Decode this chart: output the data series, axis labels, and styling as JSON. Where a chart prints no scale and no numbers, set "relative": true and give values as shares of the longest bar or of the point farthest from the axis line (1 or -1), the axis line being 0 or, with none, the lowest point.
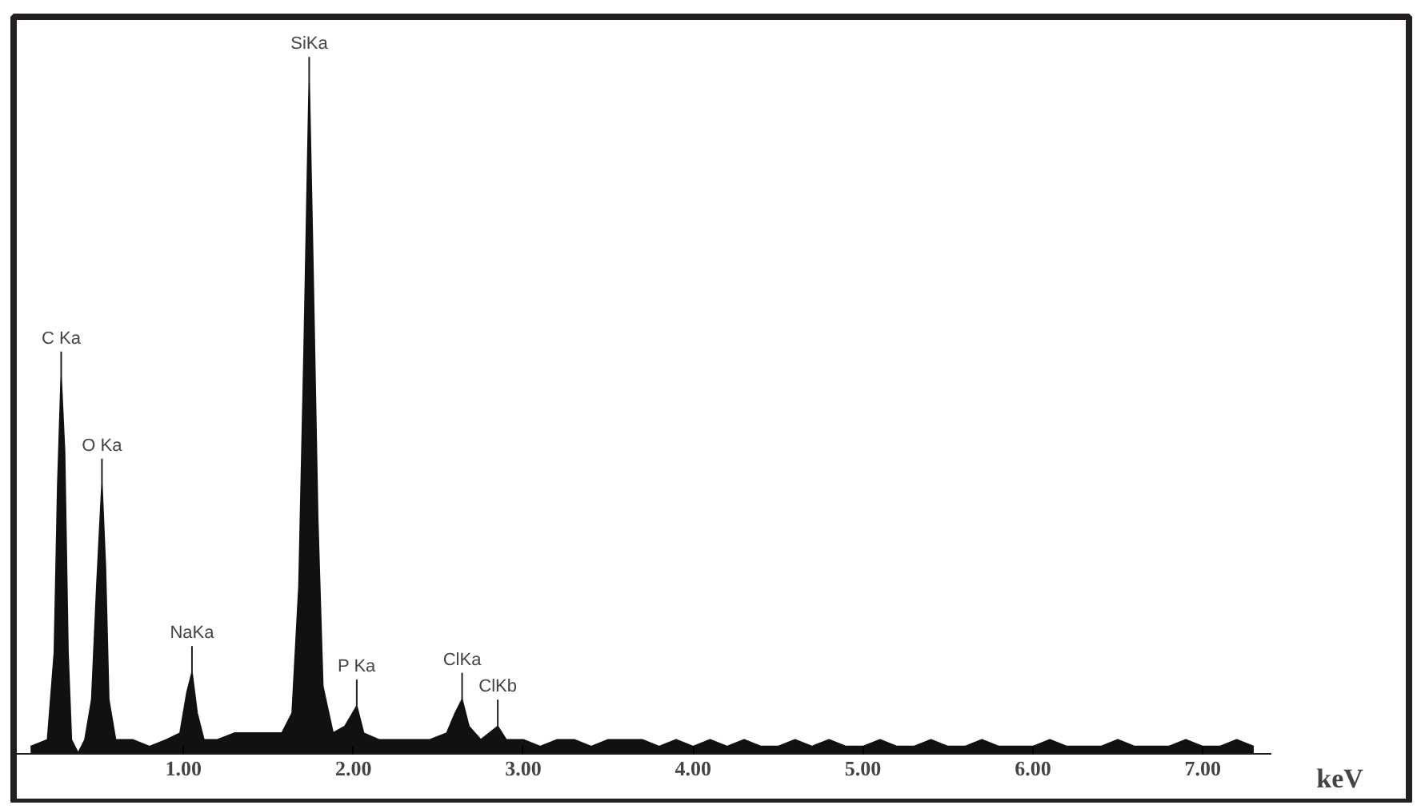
{
  "chart_data": {
    "type": "area",
    "relative": true,
    "xlabel": "keV",
    "xlim": [
      0,
      7.4
    ],
    "xticks": [
      {
        "value": 1,
        "label": "1.00"
      },
      {
        "value": 2,
        "label": "2.00"
      },
      {
        "value": 3,
        "label": "3.00"
      },
      {
        "value": 4,
        "label": "4.00"
      },
      {
        "value": 5,
        "label": "5.00"
      },
      {
        "value": 6,
        "label": "6.00"
      },
      {
        "value": 7,
        "label": "7.00"
      }
    ],
    "grid": false,
    "series": [
      {
        "color": "#111111",
        "x": [
          0.1,
          0.2,
          0.24,
          0.26,
          0.28,
          0.3,
          0.32,
          0.34,
          0.38,
          0.42,
          0.46,
          0.49,
          0.52,
          0.54,
          0.56,
          0.6,
          0.7,
          0.8,
          0.9,
          0.98,
          1.02,
          1.05,
          1.08,
          1.12,
          1.2,
          1.3,
          1.4,
          1.5,
          1.58,
          1.64,
          1.68,
          1.71,
          1.74,
          1.76,
          1.79,
          1.82,
          1.88,
          1.95,
          2.02,
          2.06,
          2.15,
          2.25,
          2.35,
          2.45,
          2.55,
          2.6,
          2.64,
          2.68,
          2.75,
          2.85,
          2.9,
          3.0,
          3.1,
          3.2,
          3.3,
          3.4,
          3.5,
          3.6,
          3.7,
          3.8,
          3.9,
          4.0,
          4.1,
          4.2,
          4.3,
          4.4,
          4.5,
          4.6,
          4.7,
          4.8,
          4.9,
          5.0,
          5.1,
          5.2,
          5.3,
          5.4,
          5.5,
          5.6,
          5.7,
          5.8,
          5.9,
          6.0,
          6.1,
          6.2,
          6.3,
          6.4,
          6.5,
          6.6,
          6.7,
          6.8,
          6.9,
          7.0,
          7.1,
          7.2,
          7.3
        ],
        "values": [
          0.01,
          0.02,
          0.15,
          0.4,
          0.56,
          0.45,
          0.15,
          0.02,
          0,
          0.02,
          0.08,
          0.25,
          0.4,
          0.28,
          0.08,
          0.02,
          0.02,
          0.01,
          0.02,
          0.03,
          0.09,
          0.12,
          0.06,
          0.02,
          0.02,
          0.03,
          0.03,
          0.03,
          0.03,
          0.06,
          0.25,
          0.6,
          1,
          0.75,
          0.35,
          0.1,
          0.03,
          0.04,
          0.07,
          0.03,
          0.02,
          0.02,
          0.02,
          0.02,
          0.03,
          0.06,
          0.08,
          0.04,
          0.02,
          0.04,
          0.02,
          0.02,
          0.01,
          0.02,
          0.02,
          0.01,
          0.02,
          0.02,
          0.02,
          0.01,
          0.02,
          0.01,
          0.02,
          0.01,
          0.02,
          0.01,
          0.01,
          0.02,
          0.01,
          0.02,
          0.01,
          0.01,
          0.02,
          0.01,
          0.01,
          0.02,
          0.01,
          0.01,
          0.02,
          0.01,
          0.01,
          0.01,
          0.02,
          0.01,
          0.01,
          0.01,
          0.02,
          0.01,
          0.01,
          0.01,
          0.02,
          0.01,
          0.01,
          0.02,
          0.01
        ]
      }
    ],
    "annotations": [
      {
        "text": "C Ka",
        "x": 0.28,
        "y": 0.56
      },
      {
        "text": "O Ka",
        "x": 0.52,
        "y": 0.4
      },
      {
        "text": "NaKa",
        "x": 1.05,
        "y": 0.12
      },
      {
        "text": "SiKa",
        "x": 1.74,
        "y": 1
      },
      {
        "text": "P Ka",
        "x": 2.02,
        "y": 0.07
      },
      {
        "text": "ClKa",
        "x": 2.64,
        "y": 0.08
      },
      {
        "text": "ClKb",
        "x": 2.85,
        "y": 0.04
      }
    ]
  }
}
